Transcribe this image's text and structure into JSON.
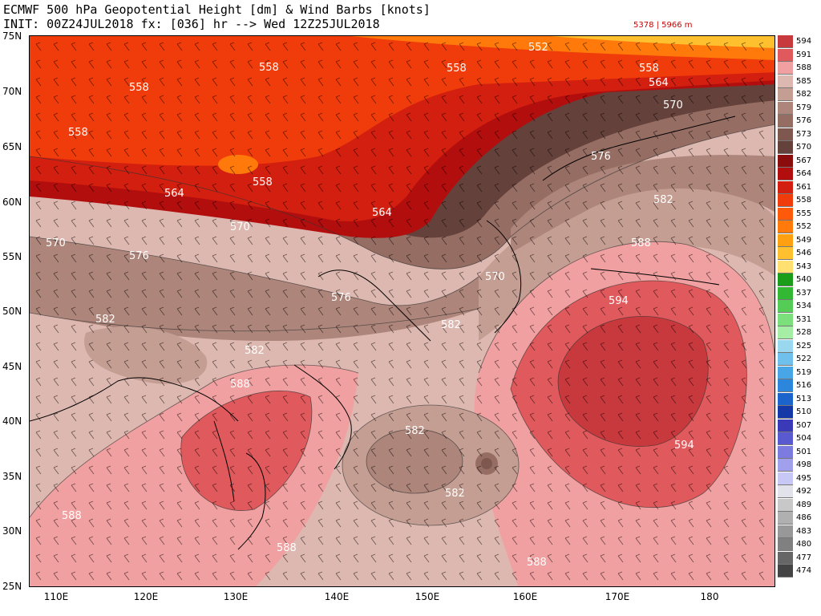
{
  "header": {
    "title_line1": "ECMWF 500 hPa Geopotential Height [dm] & Wind Barbs [knots]",
    "title_line2": "INIT: 00Z24JUL2018 fx: [036] hr --> Wed 12Z25JUL2018",
    "range_text": "5378 | 5966 m"
  },
  "axes": {
    "lat_labels": [
      "75N",
      "70N",
      "65N",
      "60N",
      "55N",
      "50N",
      "45N",
      "40N",
      "35N",
      "30N",
      "25N"
    ],
    "lon_labels": [
      "110E",
      "120E",
      "130E",
      "140E",
      "150E",
      "160E",
      "170E",
      "180"
    ]
  },
  "legend": {
    "levels": [
      {
        "label": "594",
        "color": "#c8393e"
      },
      {
        "label": "591",
        "color": "#e0595c"
      },
      {
        "label": "588",
        "color": "#f0a0a0"
      },
      {
        "label": "585",
        "color": "#ddb8b0"
      },
      {
        "label": "582",
        "color": "#c59e93"
      },
      {
        "label": "579",
        "color": "#ad857a"
      },
      {
        "label": "576",
        "color": "#956d63"
      },
      {
        "label": "573",
        "color": "#7e574f"
      },
      {
        "label": "570",
        "color": "#64413a"
      },
      {
        "label": "567",
        "color": "#8a0c0c"
      },
      {
        "label": "564",
        "color": "#b20e0e"
      },
      {
        "label": "561",
        "color": "#d21f0f"
      },
      {
        "label": "558",
        "color": "#f03c0a"
      },
      {
        "label": "555",
        "color": "#ff5a0a"
      },
      {
        "label": "552",
        "color": "#ff7a0a"
      },
      {
        "label": "549",
        "color": "#ffa010"
      },
      {
        "label": "546",
        "color": "#ffc030"
      },
      {
        "label": "543",
        "color": "#ffe070"
      },
      {
        "label": "540",
        "color": "#1a9e1a"
      },
      {
        "label": "537",
        "color": "#33b833"
      },
      {
        "label": "534",
        "color": "#55cc55"
      },
      {
        "label": "531",
        "color": "#7be07b"
      },
      {
        "label": "528",
        "color": "#a6eea6"
      },
      {
        "label": "525",
        "color": "#9ad8f0"
      },
      {
        "label": "522",
        "color": "#6fc0ec"
      },
      {
        "label": "519",
        "color": "#48a6e6"
      },
      {
        "label": "516",
        "color": "#2b86dc"
      },
      {
        "label": "513",
        "color": "#1a64cc"
      },
      {
        "label": "510",
        "color": "#1438a8"
      },
      {
        "label": "507",
        "color": "#3a3ab8"
      },
      {
        "label": "504",
        "color": "#5a5ad0"
      },
      {
        "label": "501",
        "color": "#7c7ce0"
      },
      {
        "label": "498",
        "color": "#a0a0ec"
      },
      {
        "label": "495",
        "color": "#c8c8f6"
      },
      {
        "label": "492",
        "color": "#e2e2ea"
      },
      {
        "label": "489",
        "color": "#c8c8c8"
      },
      {
        "label": "486",
        "color": "#b0b0b0"
      },
      {
        "label": "483",
        "color": "#989898"
      },
      {
        "label": "480",
        "color": "#808080"
      },
      {
        "label": "477",
        "color": "#666666"
      },
      {
        "label": "474",
        "color": "#444444"
      }
    ]
  },
  "map": {
    "contour_labels": [
      "552",
      "558",
      "558",
      "558",
      "558",
      "558",
      "558",
      "564",
      "564",
      "564",
      "570",
      "570",
      "570",
      "570",
      "576",
      "576",
      "576",
      "582",
      "582",
      "582",
      "582",
      "582",
      "582",
      "588",
      "588",
      "588",
      "588",
      "588",
      "594",
      "594"
    ]
  }
}
